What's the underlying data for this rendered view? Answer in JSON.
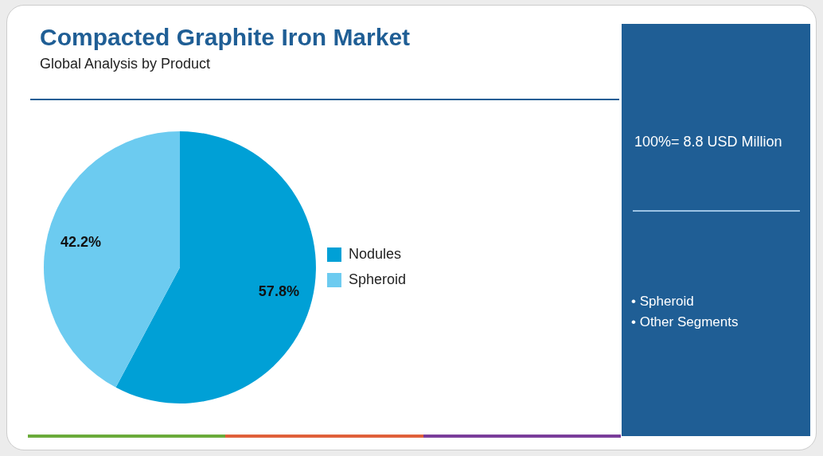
{
  "chart_data": {
    "type": "pie",
    "title": "Compacted Graphite Iron Market",
    "subtitle": "Global Analysis by Product",
    "categories": [
      "Nodules",
      "Spheroid"
    ],
    "values": [
      57.8,
      42.2
    ],
    "colors": [
      "#00a0d6",
      "#6ccbf0"
    ],
    "value_labels": [
      "57.8%",
      "42.2%"
    ],
    "legend": "right",
    "annotations": [
      "100%= 8.8 USD Million",
      "• Spheroid",
      "• Other Segments"
    ]
  }
}
